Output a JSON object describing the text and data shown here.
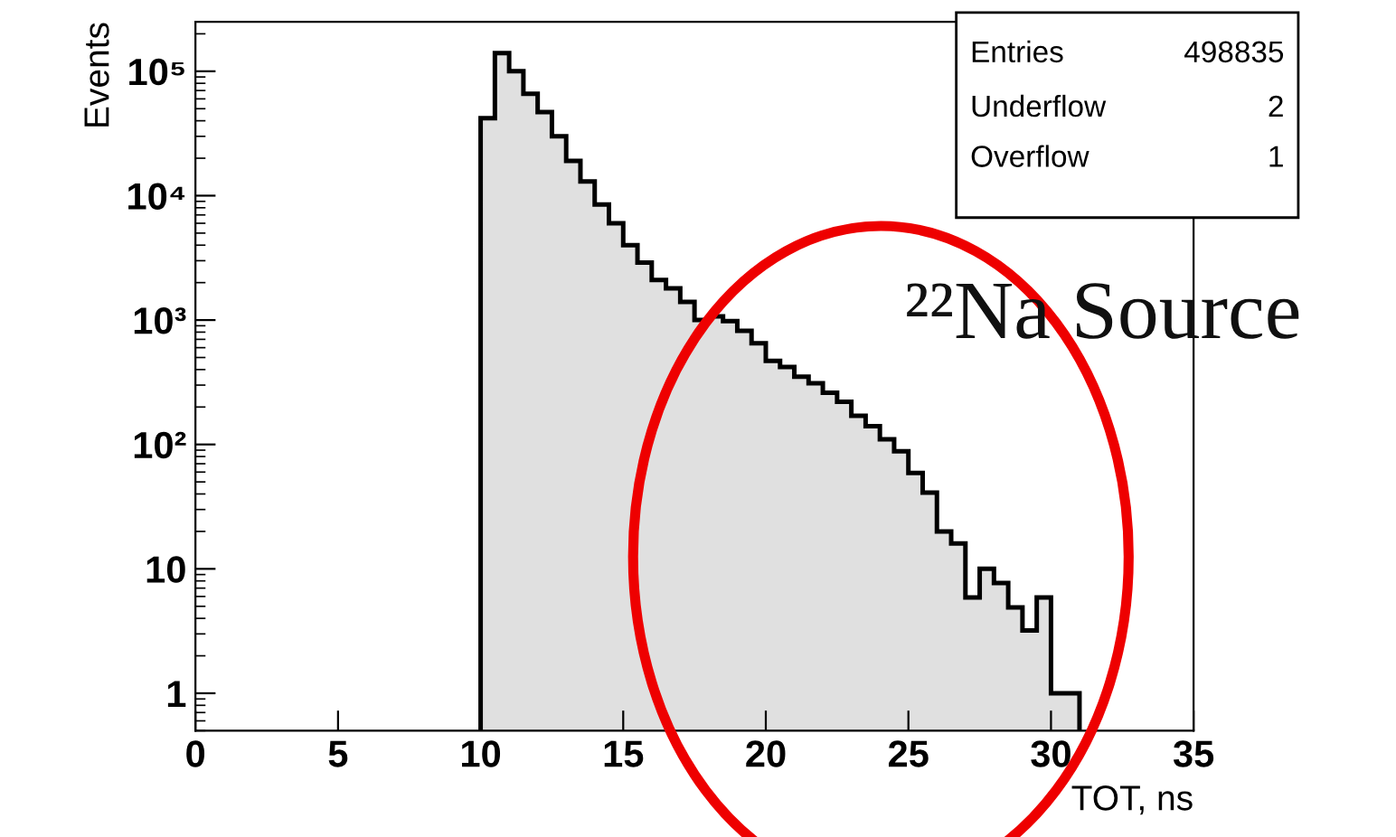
{
  "chart_data": {
    "type": "histogram",
    "xlabel": "TOT, ns",
    "ylabel": "Events",
    "color": "#e0e0e0",
    "log": "y",
    "bins": [
      10,
      10.5,
      11,
      11.5,
      12,
      12.5,
      13,
      13.5,
      14,
      14.5,
      15,
      15.5,
      16,
      16.5,
      17,
      17.5,
      18,
      18.5,
      19,
      19.5,
      20,
      20.5,
      21,
      21.5,
      22,
      22.5,
      23,
      23.5,
      24,
      24.5,
      25,
      25.5,
      26,
      26.5,
      27,
      27.5,
      28,
      28.5,
      29,
      29.5,
      30,
      30.5,
      31
    ],
    "values": [
      42000,
      140000,
      100000,
      66000,
      47000,
      30000,
      19000,
      13000,
      8500,
      6000,
      4000,
      2900,
      2100,
      1800,
      1400,
      1000,
      1070,
      980,
      820,
      650,
      470,
      420,
      350,
      310,
      260,
      220,
      170,
      140,
      110,
      88,
      59,
      41,
      20,
      16,
      5.9,
      10,
      7.7,
      4.9,
      3.2,
      5.9,
      1,
      1
    ],
    "xlim": [
      0,
      35
    ],
    "xticks": [
      0,
      5,
      10,
      15,
      20,
      25,
      30,
      35
    ],
    "ylim": [
      0.5,
      250000
    ],
    "yticks": [
      1,
      10,
      {
        "value": 100,
        "label": "10²"
      },
      {
        "value": 1000,
        "label": "10³"
      },
      {
        "value": 10000,
        "label": "10⁴"
      },
      {
        "value": 100000,
        "label": "10⁵"
      }
    ],
    "grid": false,
    "legend": false,
    "annotations": [
      "Entries",
      "498835",
      "Underflow",
      "2",
      "Overflow",
      "1",
      "²²Na Source"
    ]
  }
}
